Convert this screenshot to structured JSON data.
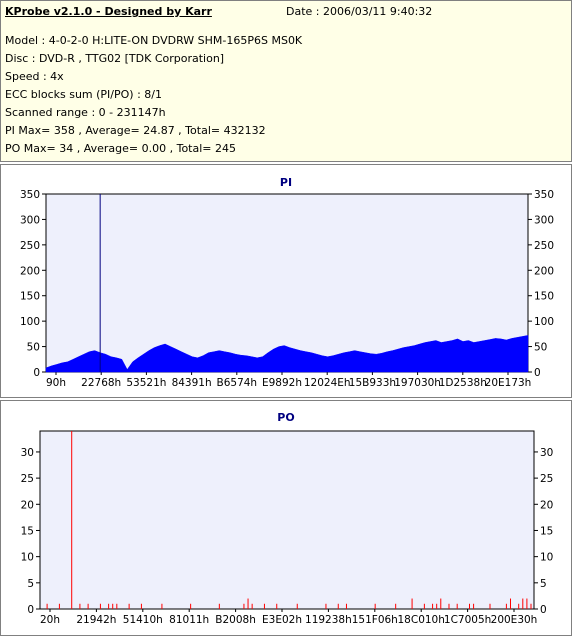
{
  "header": {
    "title": "KProbe v2.1.0 - Designed by Karr",
    "date": "Date : 2006/03/11 9:40:32",
    "lines": [
      "Model : 4-0-2-0 H:LITE-ON DVDRW SHM-165P6S MS0K",
      "Disc : DVD-R , TTG02 [TDK Corporation]",
      "Speed : 4x",
      "ECC blocks sum (PI/PO) : 8/1",
      "Scanned range : 0 - 231147h",
      "PI Max= 358 , Average= 24.87 , Total= 432132",
      "PO Max= 34 , Average= 0.00 , Total= 245"
    ]
  },
  "colors": {
    "pi": "#0000ff",
    "po": "#ff0000",
    "plot_bg": "#eef0fc",
    "info_bg": "#ffffe7"
  },
  "chart_data": [
    {
      "type": "area",
      "title": "PI",
      "ylim": [
        0,
        350
      ],
      "yticks": [
        0,
        50,
        100,
        150,
        200,
        250,
        300,
        350
      ],
      "xtick_labels": [
        "90h",
        "22768h",
        "53521h",
        "84391h",
        "B6574h",
        "E9892h",
        "12024Eh",
        "15B933h",
        "197030h",
        "1D2538h",
        "20E173h"
      ],
      "grid": false,
      "series": [
        {
          "values": [
            8,
            12,
            15,
            18,
            20,
            25,
            30,
            35,
            40,
            42,
            38,
            35,
            30,
            28,
            25,
            5,
            20,
            28,
            35,
            42,
            48,
            52,
            55,
            50,
            45,
            40,
            35,
            30,
            28,
            32,
            38,
            40,
            42,
            40,
            38,
            35,
            33,
            32,
            30,
            28,
            30,
            38,
            45,
            50,
            52,
            48,
            45,
            42,
            40,
            38,
            35,
            32,
            30,
            32,
            35,
            38,
            40,
            42,
            40,
            38,
            36,
            35,
            37,
            40,
            42,
            45,
            48,
            50,
            52,
            55,
            58,
            60,
            62,
            58,
            60,
            62,
            65,
            60,
            62,
            58,
            60,
            62,
            64,
            66,
            65,
            63,
            66,
            68,
            70,
            72
          ],
          "spikes": [
            {
              "index": 10,
              "value": 358
            }
          ]
        }
      ]
    },
    {
      "type": "bar",
      "title": "PO",
      "ylim": [
        0,
        34
      ],
      "yticks": [
        0,
        5,
        10,
        15,
        20,
        25,
        30
      ],
      "xtick_labels": [
        "20h",
        "21942h",
        "51410h",
        "81011h",
        "B2008h",
        "E3E02h",
        "119238h",
        "151F06h",
        "18C010h",
        "1C7005h",
        "200E30h"
      ],
      "grid": false,
      "series": [
        {
          "values": [
            0,
            1,
            0,
            0,
            1,
            0,
            0,
            34,
            0,
            1,
            0,
            1,
            0,
            0,
            1,
            0,
            1,
            1,
            1,
            0,
            0,
            1,
            0,
            0,
            1,
            0,
            0,
            0,
            0,
            1,
            0,
            0,
            0,
            0,
            0,
            0,
            1,
            0,
            0,
            0,
            0,
            0,
            0,
            1,
            0,
            0,
            0,
            0,
            0,
            1,
            2,
            1,
            0,
            0,
            1,
            0,
            0,
            1,
            0,
            0,
            0,
            0,
            1,
            0,
            0,
            0,
            0,
            0,
            0,
            1,
            0,
            0,
            1,
            0,
            1,
            0,
            0,
            0,
            0,
            0,
            0,
            1,
            0,
            0,
            0,
            0,
            1,
            0,
            0,
            0,
            2,
            0,
            0,
            1,
            0,
            1,
            1,
            2,
            0,
            1,
            0,
            1,
            0,
            0,
            1,
            1,
            0,
            0,
            0,
            1,
            0,
            0,
            0,
            1,
            2,
            0,
            1,
            2,
            2,
            1
          ]
        }
      ]
    }
  ]
}
